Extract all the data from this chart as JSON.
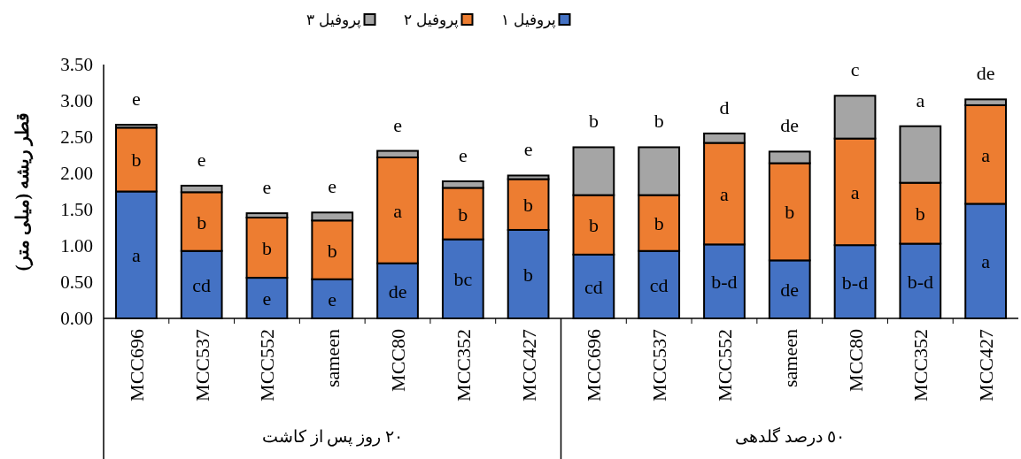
{
  "chart_data": {
    "type": "bar",
    "stacked": true,
    "ylabel": "قطر ریشه (میلی متر)",
    "legend": "top",
    "categories": [
      "MCC696",
      "MCC537",
      "MCC552",
      "sameen",
      "MCC80",
      "MCC352",
      "MCC427",
      "MCC696",
      "MCC537",
      "MCC552",
      "sameen",
      "MCC80",
      "MCC352",
      "MCC427"
    ],
    "ylim": [
      0,
      3.5
    ],
    "yticks": [
      {
        "value": 0,
        "label": "0.00"
      },
      {
        "value": 0.5,
        "label": "0.50"
      },
      {
        "value": 1,
        "label": "1.00"
      },
      {
        "value": 1.5,
        "label": "1.50"
      },
      {
        "value": 2,
        "label": "2.00"
      },
      {
        "value": 2.5,
        "label": "2.50"
      },
      {
        "value": 3,
        "label": "3.00"
      },
      {
        "value": 3.5,
        "label": "3.50"
      }
    ],
    "series": [
      {
        "name": "پروفیل ١",
        "color": "#4472c4",
        "values": [
          1.75,
          0.93,
          0.56,
          0.54,
          0.76,
          1.09,
          1.22,
          0.88,
          0.93,
          1.02,
          0.8,
          1.01,
          1.03,
          1.58
        ],
        "value_labels": [
          "a",
          "cd",
          "e",
          "e",
          "de",
          "bc",
          "b",
          "cd",
          "cd",
          "b-d",
          "de",
          "b-d",
          "b-d",
          "a"
        ]
      },
      {
        "name": "پروفیل ٢",
        "color": "#ed7d31",
        "values": [
          0.88,
          0.81,
          0.83,
          0.81,
          1.46,
          0.71,
          0.7,
          0.82,
          0.77,
          1.4,
          1.34,
          1.47,
          0.84,
          1.36
        ],
        "value_labels": [
          "b",
          "b",
          "b",
          "b",
          "a",
          "b",
          "b",
          "b",
          "b",
          "a",
          "b",
          "a",
          "b",
          "a"
        ]
      },
      {
        "name": "پروفیل ٣",
        "color": "#a5a5a5",
        "values": [
          0.04,
          0.09,
          0.06,
          0.11,
          0.09,
          0.09,
          0.05,
          0.66,
          0.66,
          0.13,
          0.16,
          0.59,
          0.78,
          0.08
        ],
        "value_labels": [
          "e",
          "e",
          "e",
          "e",
          "e",
          "e",
          "e",
          "b",
          "b",
          "d",
          "de",
          "c",
          "a",
          "de"
        ]
      }
    ],
    "annotations": [
      "٢٠ روز پس از کاشت",
      "٥٠ درصد گلدهی"
    ]
  }
}
